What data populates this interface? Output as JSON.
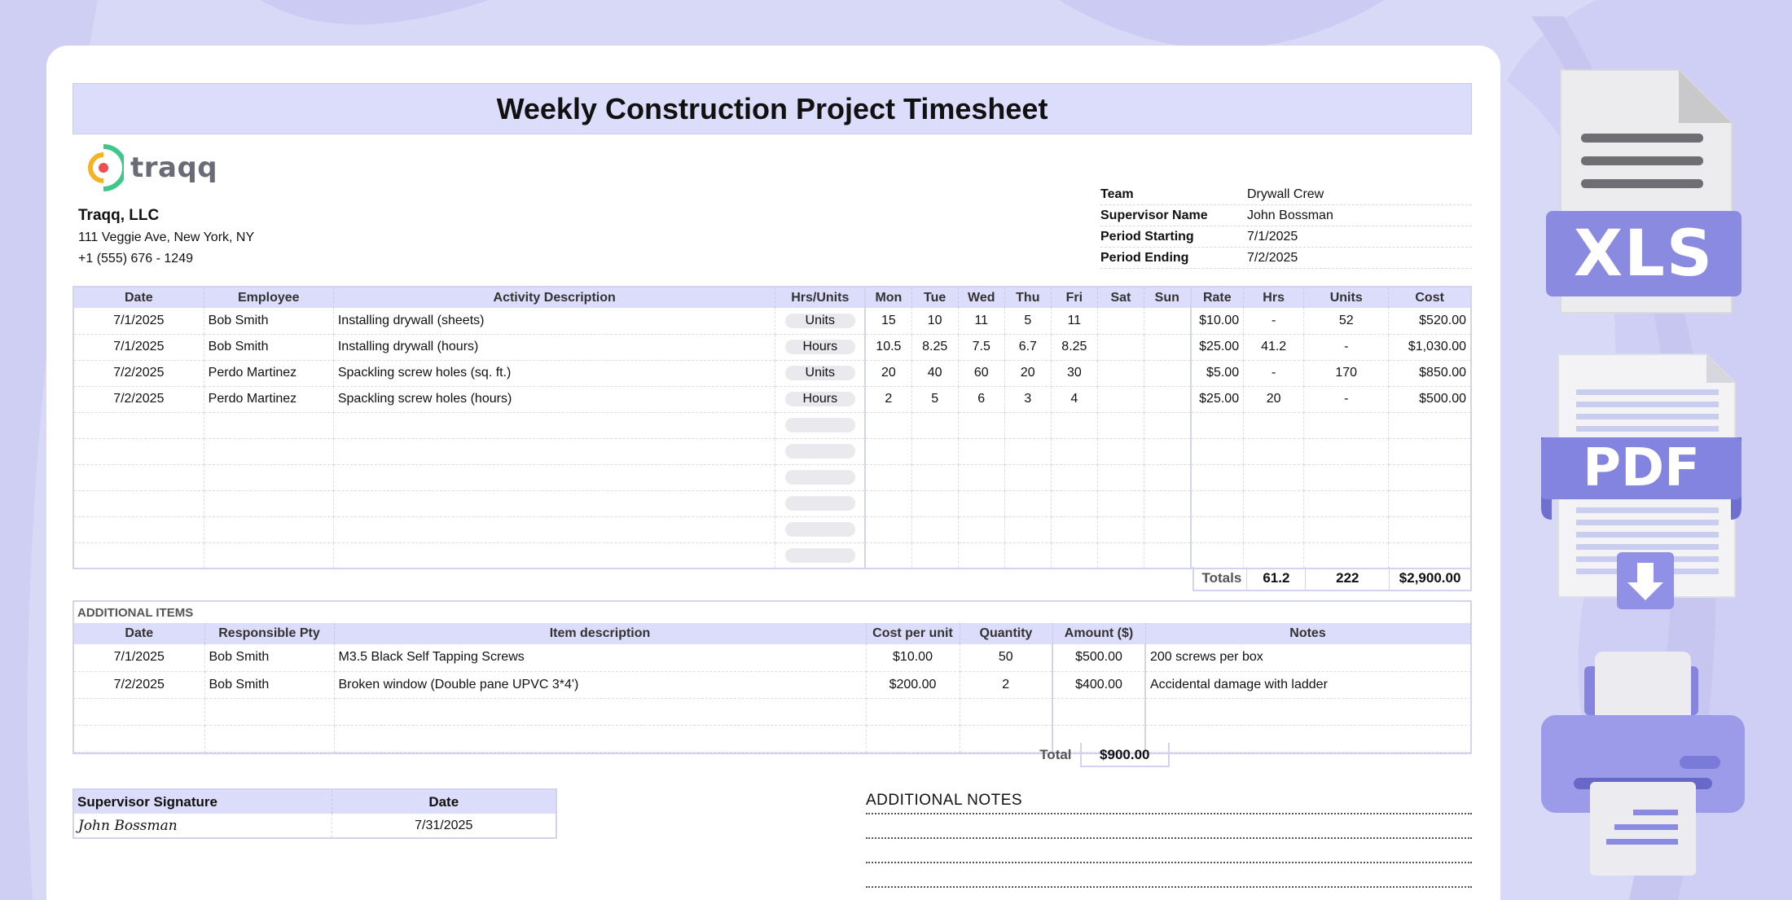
{
  "title": "Weekly Construction Project Timesheet",
  "logo": {
    "text": "traqq"
  },
  "company": {
    "name": "Traqq, LLC",
    "address": "111 Veggie Ave, New York, NY",
    "phone": "+1 (555) 676 - 1249"
  },
  "info": [
    {
      "label": "Team",
      "value": "Drywall Crew"
    },
    {
      "label": "Supervisor Name",
      "value": "John Bossman"
    },
    {
      "label": "Period Starting",
      "value": "7/1/2025"
    },
    {
      "label": "Period Ending",
      "value": "7/2/2025"
    }
  ],
  "main_table": {
    "headers": [
      "Date",
      "Employee",
      "Activity Description",
      "Hrs/Units",
      "Mon",
      "Tue",
      "Wed",
      "Thu",
      "Fri",
      "Sat",
      "Sun",
      "Rate",
      "Hrs",
      "Units",
      "Cost"
    ],
    "rows": [
      [
        "7/1/2025",
        "Bob Smith",
        "Installing drywall (sheets)",
        "Units",
        "15",
        "10",
        "11",
        "5",
        "11",
        "",
        "",
        "$10.00",
        "-",
        "52",
        "$520.00"
      ],
      [
        "7/1/2025",
        "Bob Smith",
        "Installing drywall (hours)",
        "Hours",
        "10.5",
        "8.25",
        "7.5",
        "6.7",
        "8.25",
        "",
        "",
        "$25.00",
        "41.2",
        "-",
        "$1,030.00"
      ],
      [
        "7/2/2025",
        "Perdo Martinez",
        "Spackling screw holes (sq. ft.)",
        "Units",
        "20",
        "40",
        "60",
        "20",
        "30",
        "",
        "",
        "$5.00",
        "-",
        "170",
        "$850.00"
      ],
      [
        "7/2/2025",
        "Perdo Martinez",
        "Spackling screw holes (hours)",
        "Hours",
        "2",
        "5",
        "6",
        "3",
        "4",
        "",
        "",
        "$25.00",
        "20",
        "-",
        "$500.00"
      ],
      [
        "",
        "",
        "",
        "",
        "",
        "",
        "",
        "",
        "",
        "",
        "",
        "",
        "",
        "",
        ""
      ],
      [
        "",
        "",
        "",
        "",
        "",
        "",
        "",
        "",
        "",
        "",
        "",
        "",
        "",
        "",
        ""
      ],
      [
        "",
        "",
        "",
        "",
        "",
        "",
        "",
        "",
        "",
        "",
        "",
        "",
        "",
        "",
        ""
      ],
      [
        "",
        "",
        "",
        "",
        "",
        "",
        "",
        "",
        "",
        "",
        "",
        "",
        "",
        "",
        ""
      ],
      [
        "",
        "",
        "",
        "",
        "",
        "",
        "",
        "",
        "",
        "",
        "",
        "",
        "",
        "",
        ""
      ],
      [
        "",
        "",
        "",
        "",
        "",
        "",
        "",
        "",
        "",
        "",
        "",
        "",
        "",
        "",
        ""
      ]
    ],
    "totals": {
      "label": "Totals",
      "hrs": "61.2",
      "units": "222",
      "cost": "$2,900.00"
    }
  },
  "additional_items": {
    "heading": "ADDITIONAL ITEMS",
    "headers": [
      "Date",
      "Responsible Pty",
      "Item description",
      "Cost per unit",
      "Quantity",
      "Amount ($)",
      "Notes"
    ],
    "rows": [
      [
        "7/1/2025",
        "Bob Smith",
        "M3.5 Black Self Tapping Screws",
        "$10.00",
        "50",
        "$500.00",
        "200 screws per box"
      ],
      [
        "7/2/2025",
        "Bob Smith",
        "Broken window (Double pane UPVC 3*4')",
        "$200.00",
        "2",
        "$400.00",
        "Accidental damage with ladder"
      ],
      [
        "",
        "",
        "",
        "",
        "",
        "",
        ""
      ],
      [
        "",
        "",
        "",
        "",
        "",
        "",
        ""
      ]
    ],
    "total_label": "Total",
    "total_value": "$900.00"
  },
  "signature": {
    "headers": [
      "Supervisor Signature",
      "Date"
    ],
    "name": "John Bossman",
    "date": "7/31/2025"
  },
  "notes": {
    "title": "ADDITIONAL NOTES"
  },
  "file_icons": {
    "xls_label": "XLS",
    "pdf_label": "PDF"
  },
  "colors": {
    "accent": "#8f8fe6",
    "header_bg": "#dcdcfb",
    "page_bg": "#d9d9f6"
  }
}
